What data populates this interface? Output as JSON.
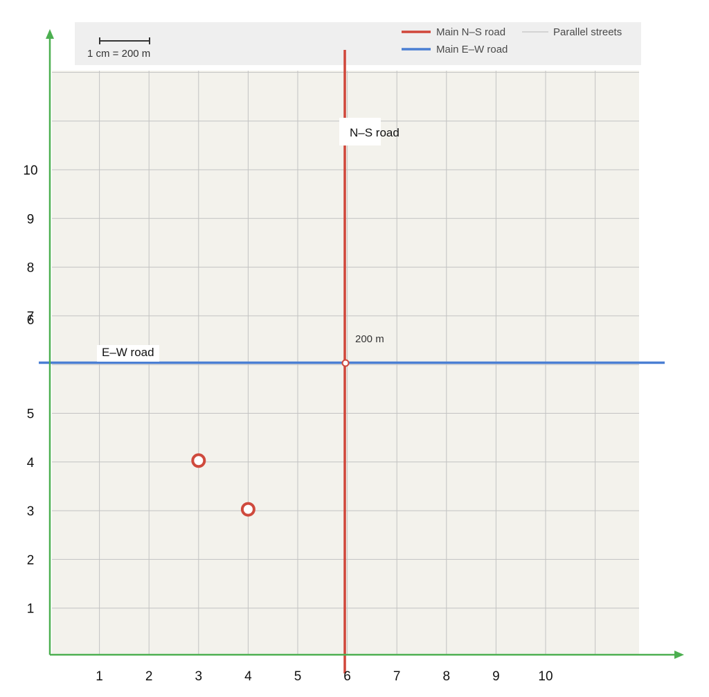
{
  "legend": {
    "ns_label": "Main N–S road",
    "ew_label": "Main E–W road",
    "streets_label": "Parallel streets"
  },
  "scale_label": "1 cm = 200 m",
  "road_labels": {
    "ns": "N–S road",
    "ew": "E–W road"
  },
  "distance_label": "200 m",
  "x_ticks": [
    "1",
    "2",
    "3",
    "4",
    "5",
    "6",
    "7",
    "8",
    "9",
    "10"
  ],
  "y_ticks": [
    "1",
    "2",
    "3",
    "4",
    "5",
    "6",
    "7",
    "8",
    "9",
    "10"
  ],
  "points": [
    {
      "x": 3,
      "y": 4
    },
    {
      "x": 4,
      "y": 3
    }
  ],
  "colors": {
    "ns_road": "#d0463a",
    "ew_road": "#4a7fd3",
    "axes": "#4caf50",
    "streets": "#c2c2c2",
    "grid_bg": "#f3f2ec",
    "point": "#cf4a3d"
  }
}
